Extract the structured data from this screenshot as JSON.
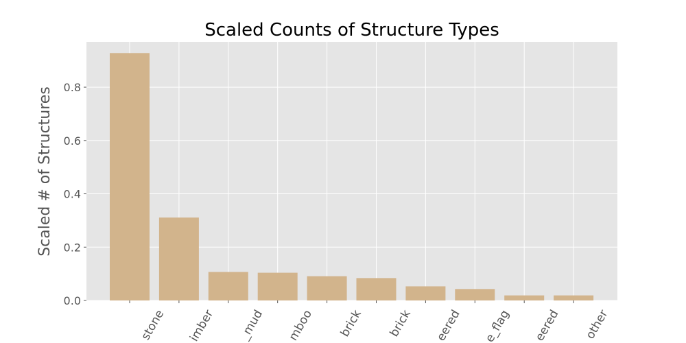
{
  "chart_data": {
    "type": "bar",
    "title": "Scaled Counts of Structure Types",
    "xlabel": "",
    "ylabel": "Scaled # of Structures",
    "ylim": [
      0,
      0.97
    ],
    "yticks": [
      "0.0",
      "0.2",
      "0.4",
      "0.6",
      "0.8"
    ],
    "ytick_values": [
      0.0,
      0.2,
      0.4,
      0.6,
      0.8
    ],
    "categories": [
      "stone",
      "imber",
      "_mud",
      "mboo",
      "brick",
      "brick",
      "eered",
      "e_flag",
      "eered",
      "other"
    ],
    "values": [
      0.928,
      0.311,
      0.107,
      0.104,
      0.091,
      0.084,
      0.053,
      0.043,
      0.019,
      0.019
    ],
    "bar_color": "#d2b48c",
    "background": "#e5e5e5",
    "grid": true
  }
}
